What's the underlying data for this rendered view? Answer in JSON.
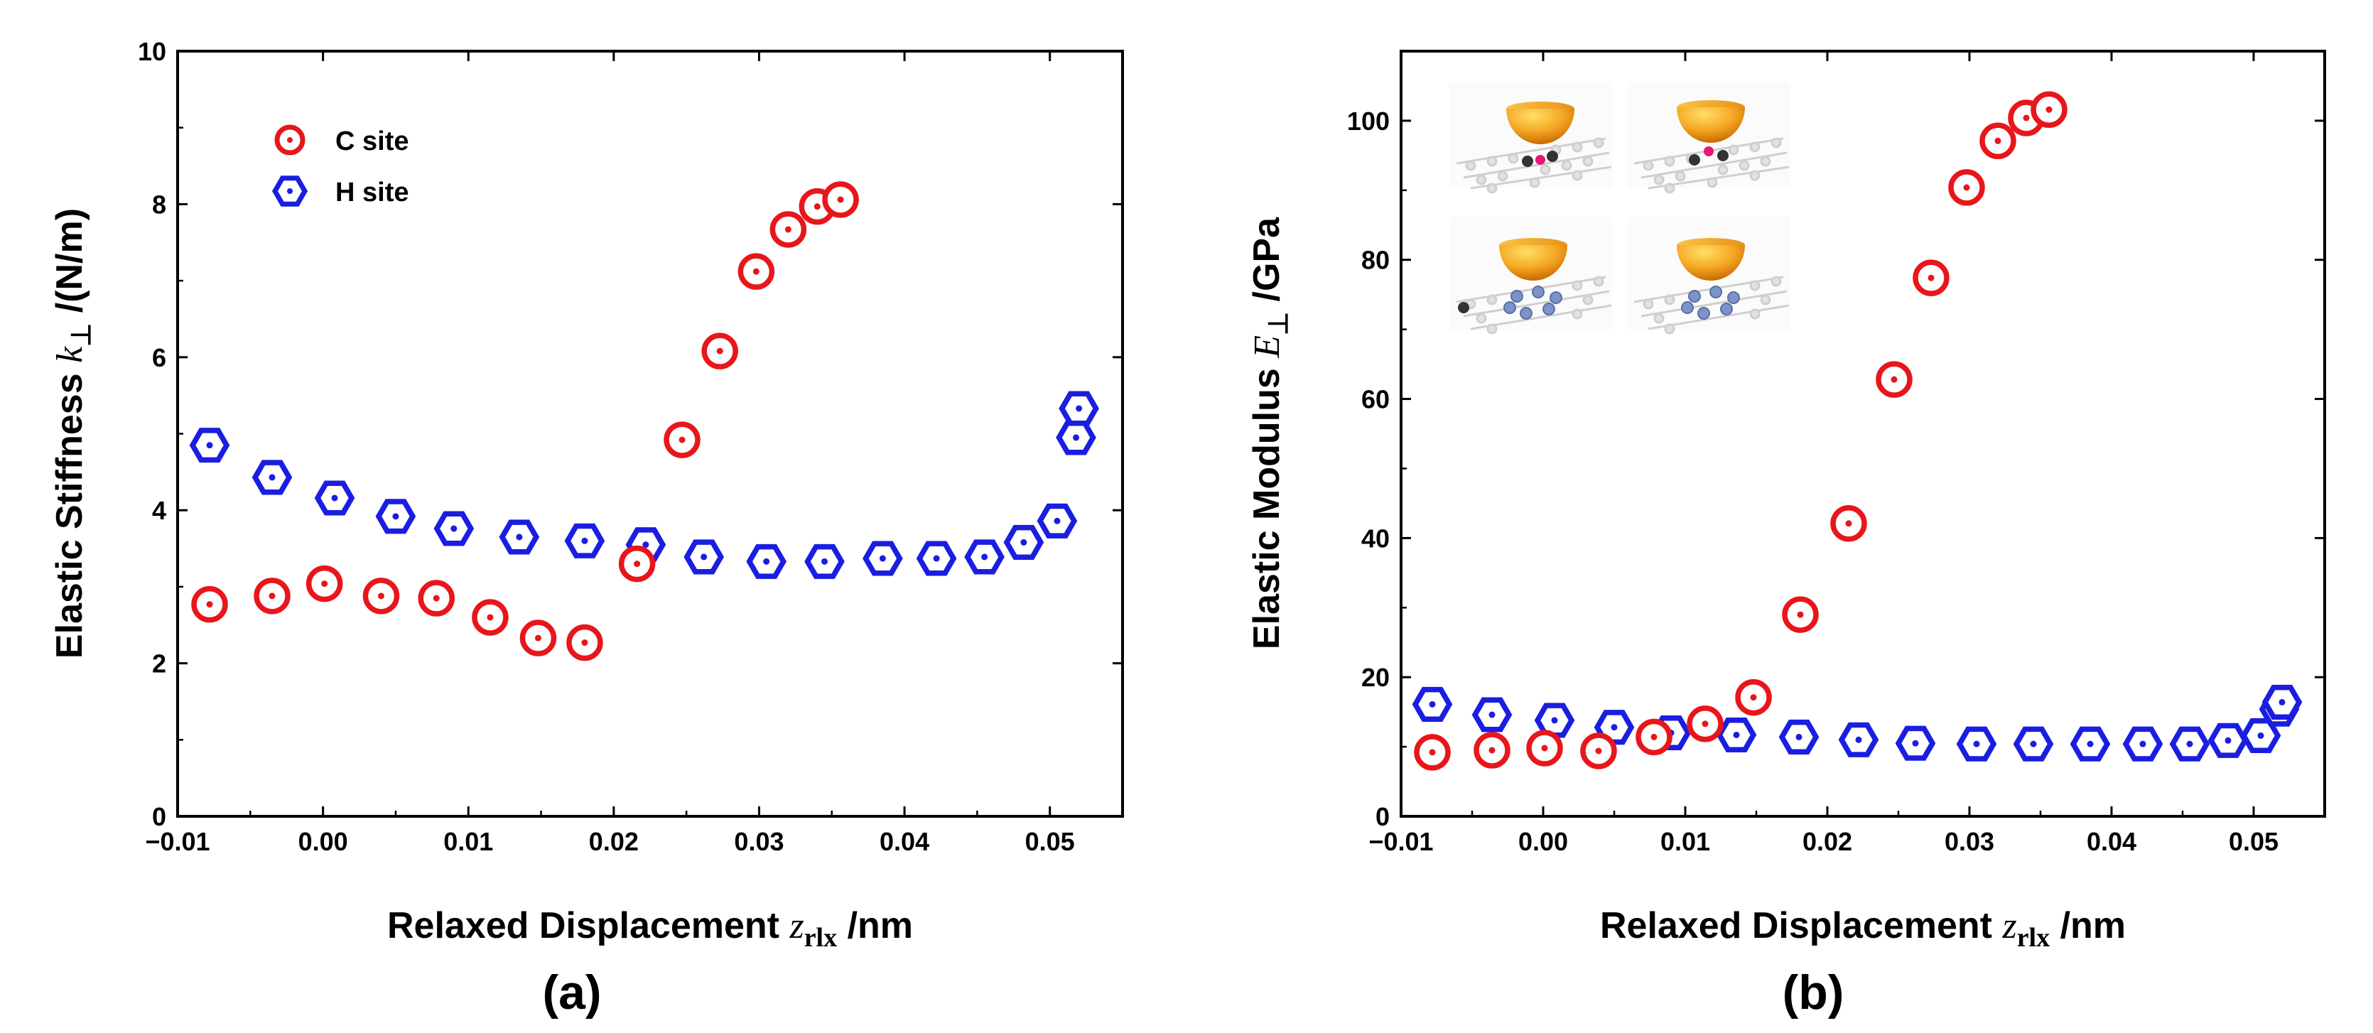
{
  "colors": {
    "c_site": "#e8161b",
    "h_site": "#1a1ee0",
    "axis": "#000000"
  },
  "chart_data": [
    {
      "type": "scatter",
      "panel_label": "(a)",
      "xlabel": {
        "text": "Relaxed Displacement ",
        "var": "z",
        "sub": "rlx",
        "unit": " /nm"
      },
      "ylabel": {
        "text": "Elastic Stiffness ",
        "var": "k",
        "sub": "⊥",
        "unit": " /(N/m)"
      },
      "xlim": [
        -0.01,
        0.055
      ],
      "ylim": [
        0,
        10
      ],
      "x_ticks": [
        -0.01,
        0.0,
        0.01,
        0.02,
        0.03,
        0.04,
        0.05
      ],
      "x_tick_labels": [
        "−0.01",
        "0.00",
        "0.01",
        "0.02",
        "0.03",
        "0.04",
        "0.05"
      ],
      "y_ticks": [
        0,
        2,
        4,
        6,
        8,
        10
      ],
      "y_tick_labels": [
        "0",
        "2",
        "4",
        "6",
        "8",
        "10"
      ],
      "legend": {
        "position": "top-left",
        "entries": [
          {
            "label": "C site",
            "marker": "circle",
            "color_key": "c_site"
          },
          {
            "label": "H site",
            "marker": "hexagon",
            "color_key": "h_site"
          }
        ]
      },
      "series": [
        {
          "name": "C site",
          "marker": "circle",
          "x": [
            -0.0078,
            -0.0035,
            0.0001,
            0.004,
            0.0078,
            0.0115,
            0.0148,
            0.018,
            0.0216,
            0.0247,
            0.0273,
            0.0298,
            0.032,
            0.034,
            0.0356
          ],
          "y": [
            2.77,
            2.88,
            3.04,
            2.88,
            2.85,
            2.6,
            2.33,
            2.27,
            3.3,
            4.92,
            6.08,
            7.12,
            7.67,
            7.97,
            8.06
          ]
        },
        {
          "name": "H site",
          "marker": "hexagon",
          "x": [
            -0.0078,
            -0.0035,
            0.0008,
            0.005,
            0.009,
            0.0135,
            0.018,
            0.0222,
            0.0262,
            0.0305,
            0.0345,
            0.0385,
            0.0422,
            0.0455,
            0.0482,
            0.0505,
            0.0518,
            0.052
          ],
          "y": [
            4.85,
            4.43,
            4.16,
            3.92,
            3.76,
            3.65,
            3.6,
            3.55,
            3.39,
            3.33,
            3.33,
            3.37,
            3.37,
            3.39,
            3.58,
            3.86,
            4.95,
            5.33
          ]
        }
      ]
    },
    {
      "type": "scatter",
      "panel_label": "(b)",
      "xlabel": {
        "text": "Relaxed Displacement ",
        "var": "z",
        "sub": "rlx",
        "unit": " /nm"
      },
      "ylabel": {
        "text": "Elastic Modulus ",
        "var": "E",
        "sub": "⊥",
        "unit": " /GPa"
      },
      "xlim": [
        -0.01,
        0.055
      ],
      "ylim": [
        0,
        110
      ],
      "x_ticks": [
        -0.01,
        0.0,
        0.01,
        0.02,
        0.03,
        0.04,
        0.05
      ],
      "x_tick_labels": [
        "−0.01",
        "0.00",
        "0.01",
        "0.02",
        "0.03",
        "0.04",
        "0.05"
      ],
      "y_ticks": [
        0,
        20,
        40,
        60,
        80,
        100
      ],
      "y_tick_labels": [
        "0",
        "20",
        "40",
        "60",
        "80",
        "100"
      ],
      "inset": "four indenter-on-graphene illustrations (top-left)",
      "series": [
        {
          "name": "C site",
          "marker": "circle",
          "x": [
            -0.0078,
            -0.0036,
            0.0001,
            0.0039,
            0.0078,
            0.0114,
            0.0148,
            0.0181,
            0.0215,
            0.0247,
            0.0273,
            0.0298,
            0.032,
            0.034,
            0.0356
          ],
          "y": [
            9.2,
            9.5,
            9.8,
            9.4,
            11.4,
            13.3,
            17.1,
            29.0,
            42.1,
            62.8,
            77.4,
            90.4,
            97.1,
            100.4,
            101.6
          ]
        },
        {
          "name": "H site",
          "marker": "hexagon",
          "x": [
            -0.0078,
            -0.0036,
            0.0008,
            0.005,
            0.009,
            0.0136,
            0.018,
            0.0222,
            0.0262,
            0.0305,
            0.0345,
            0.0385,
            0.0422,
            0.0455,
            0.0482,
            0.0505,
            0.0518,
            0.052
          ],
          "y": [
            16.1,
            14.6,
            13.8,
            12.8,
            12.0,
            11.7,
            11.4,
            11.0,
            10.5,
            10.4,
            10.4,
            10.4,
            10.4,
            10.4,
            10.9,
            11.6,
            15.4,
            16.4
          ]
        }
      ]
    }
  ]
}
